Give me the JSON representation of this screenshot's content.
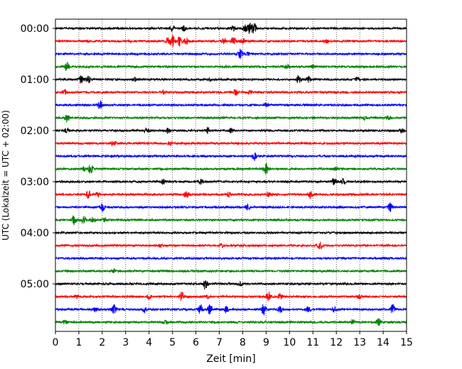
{
  "chart_data": {
    "type": "line",
    "title": "",
    "xlabel": "Zeit  [min]",
    "ylabel": "UTC (Lokalzeit = UTC + 02:00)",
    "xlim": [
      0,
      15
    ],
    "x_ticks": [
      "0",
      "1",
      "2",
      "3",
      "4",
      "5",
      "6",
      "7",
      "8",
      "9",
      "10",
      "11",
      "12",
      "13",
      "14",
      "15"
    ],
    "y_tick_labels": [
      "00:00",
      "01:00",
      "02:00",
      "03:00",
      "04:00",
      "05:00"
    ],
    "grid": "vertical dotted at each minute",
    "legend": "none",
    "trace_colors": [
      "#000000",
      "#ff0000",
      "#0000ff",
      "#008000"
    ],
    "traces": [
      {
        "start": "00:00",
        "color": "black",
        "events": [
          [
            5.0,
            0.6
          ],
          [
            5.5,
            0.4
          ],
          [
            7.6,
            0.5
          ],
          [
            8.1,
            0.6
          ],
          [
            8.3,
            1.0
          ],
          [
            8.5,
            1.0
          ]
        ]
      },
      {
        "start": "00:15",
        "color": "red",
        "events": [
          [
            4.8,
            0.6
          ],
          [
            5.0,
            1.0
          ],
          [
            5.3,
            0.8
          ],
          [
            5.6,
            0.5
          ],
          [
            7.2,
            0.6
          ],
          [
            7.6,
            0.8
          ],
          [
            8.0,
            0.7
          ],
          [
            11.6,
            0.3
          ]
        ]
      },
      {
        "start": "00:30",
        "color": "blue",
        "events": [
          [
            7.9,
            0.8
          ],
          [
            8.2,
            0.4
          ]
        ]
      },
      {
        "start": "00:45",
        "color": "green",
        "events": [
          [
            0.5,
            0.8
          ],
          [
            9.9,
            0.3
          ],
          [
            11.0,
            0.3
          ]
        ]
      },
      {
        "start": "01:00",
        "color": "black",
        "events": [
          [
            1.1,
            0.7
          ],
          [
            1.4,
            0.6
          ],
          [
            3.4,
            0.3
          ],
          [
            6.6,
            0.3
          ],
          [
            10.4,
            0.7
          ],
          [
            10.8,
            0.6
          ],
          [
            12.9,
            0.4
          ]
        ]
      },
      {
        "start": "01:15",
        "color": "red",
        "events": [
          [
            0.4,
            0.4
          ],
          [
            4.6,
            0.3
          ],
          [
            7.7,
            0.4
          ],
          [
            8.3,
            0.3
          ]
        ]
      },
      {
        "start": "01:30",
        "color": "blue",
        "events": [
          [
            1.9,
            0.8
          ],
          [
            9.0,
            0.3
          ]
        ]
      },
      {
        "start": "01:45",
        "color": "green",
        "events": [
          [
            0.5,
            0.7
          ],
          [
            13.2,
            0.3
          ],
          [
            14.2,
            0.4
          ]
        ]
      },
      {
        "start": "02:00",
        "color": "black",
        "events": [
          [
            0.5,
            0.4
          ],
          [
            3.9,
            0.4
          ],
          [
            4.8,
            0.4
          ],
          [
            6.5,
            0.5
          ],
          [
            7.5,
            0.4
          ],
          [
            14.8,
            0.4
          ]
        ]
      },
      {
        "start": "02:15",
        "color": "red",
        "events": [
          [
            2.5,
            0.7
          ],
          [
            4.9,
            0.3
          ]
        ]
      },
      {
        "start": "02:30",
        "color": "blue",
        "events": [
          [
            8.5,
            0.8
          ]
        ]
      },
      {
        "start": "02:45",
        "color": "green",
        "events": [
          [
            1.2,
            0.4
          ],
          [
            1.5,
            0.8
          ],
          [
            9.0,
            1.0
          ],
          [
            12.0,
            0.3
          ]
        ]
      },
      {
        "start": "03:00",
        "color": "black",
        "events": [
          [
            4.6,
            0.4
          ],
          [
            6.2,
            0.4
          ],
          [
            11.9,
            0.7
          ],
          [
            12.3,
            0.6
          ]
        ]
      },
      {
        "start": "03:15",
        "color": "red",
        "events": [
          [
            1.4,
            0.7
          ],
          [
            1.8,
            0.4
          ],
          [
            5.6,
            0.6
          ],
          [
            7.4,
            0.4
          ],
          [
            9.1,
            0.3
          ],
          [
            10.9,
            0.6
          ]
        ]
      },
      {
        "start": "03:30",
        "color": "blue",
        "events": [
          [
            2.0,
            0.7
          ],
          [
            8.2,
            0.4
          ],
          [
            14.3,
            0.8
          ]
        ]
      },
      {
        "start": "03:45",
        "color": "green",
        "events": [
          [
            0.8,
            0.8
          ],
          [
            1.2,
            0.7
          ],
          [
            1.6,
            0.5
          ],
          [
            2.1,
            0.3
          ]
        ]
      },
      {
        "start": "04:00",
        "color": "black",
        "events": []
      },
      {
        "start": "04:15",
        "color": "red",
        "events": [
          [
            4.5,
            0.4
          ],
          [
            7.1,
            0.3
          ],
          [
            11.3,
            0.8
          ]
        ]
      },
      {
        "start": "04:30",
        "color": "blue",
        "events": []
      },
      {
        "start": "04:45",
        "color": "green",
        "events": [
          [
            2.5,
            0.3
          ]
        ]
      },
      {
        "start": "05:00",
        "color": "black",
        "events": [
          [
            6.4,
            1.0
          ],
          [
            7.9,
            0.3
          ]
        ]
      },
      {
        "start": "05:15",
        "color": "red",
        "events": [
          [
            0.9,
            0.3
          ],
          [
            4.0,
            0.4
          ],
          [
            5.4,
            0.8
          ],
          [
            6.5,
            0.3
          ],
          [
            9.1,
            0.8
          ],
          [
            9.6,
            0.5
          ],
          [
            13.0,
            0.3
          ]
        ]
      },
      {
        "start": "05:30",
        "color": "blue",
        "events": [
          [
            1.7,
            0.4
          ],
          [
            2.5,
            0.9
          ],
          [
            3.8,
            0.4
          ],
          [
            6.2,
            0.9
          ],
          [
            6.6,
            0.8
          ],
          [
            7.3,
            0.6
          ],
          [
            8.9,
            1.0
          ],
          [
            9.6,
            0.6
          ],
          [
            10.8,
            0.5
          ],
          [
            11.9,
            0.5
          ],
          [
            14.4,
            0.9
          ]
        ]
      },
      {
        "start": "05:45",
        "color": "green",
        "events": [
          [
            0.4,
            0.3
          ],
          [
            4.7,
            0.3
          ],
          [
            12.7,
            0.5
          ],
          [
            13.8,
            0.6
          ]
        ]
      }
    ]
  }
}
